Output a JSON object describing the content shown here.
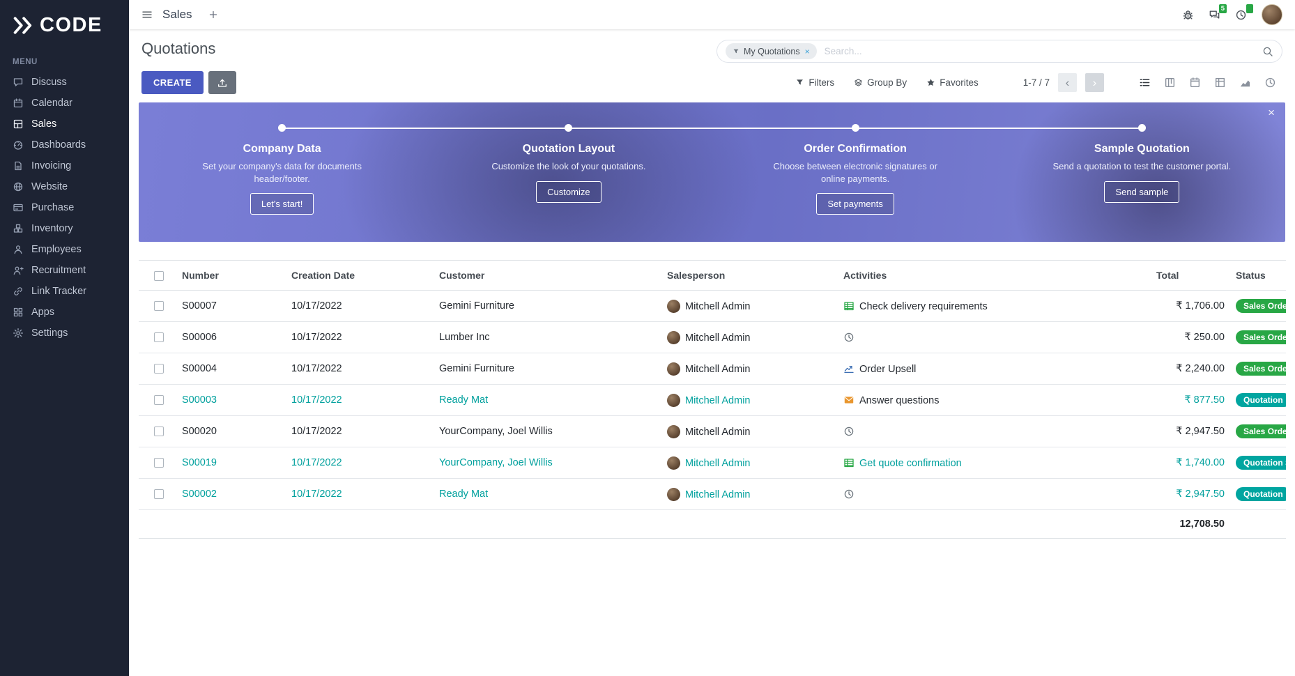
{
  "brand": {
    "name": "CODE",
    "logo_icon": "brand-logo-icon"
  },
  "topbar": {
    "title": "Sales",
    "tab_add": "+",
    "message_badge": "5",
    "icons": [
      "bug-icon",
      "chat-icon",
      "clock-icon"
    ]
  },
  "sidebar": {
    "menu_label": "MENU",
    "items": [
      {
        "label": "Discuss",
        "icon": "discuss-icon",
        "active": false
      },
      {
        "label": "Calendar",
        "icon": "calendar-icon",
        "active": false
      },
      {
        "label": "Sales",
        "icon": "sales-icon",
        "active": true
      },
      {
        "label": "Dashboards",
        "icon": "dashboards-icon",
        "active": false
      },
      {
        "label": "Invoicing",
        "icon": "invoicing-icon",
        "active": false
      },
      {
        "label": "Website",
        "icon": "website-icon",
        "active": false
      },
      {
        "label": "Purchase",
        "icon": "purchase-icon",
        "active": false
      },
      {
        "label": "Inventory",
        "icon": "inventory-icon",
        "active": false
      },
      {
        "label": "Employees",
        "icon": "employees-icon",
        "active": false
      },
      {
        "label": "Recruitment",
        "icon": "recruitment-icon",
        "active": false
      },
      {
        "label": "Link Tracker",
        "icon": "link-tracker-icon",
        "active": false
      },
      {
        "label": "Apps",
        "icon": "apps-icon",
        "active": false
      },
      {
        "label": "Settings",
        "icon": "settings-icon",
        "active": false
      }
    ]
  },
  "control_panel": {
    "title": "Quotations",
    "create_label": "CREATE",
    "search": {
      "chip": "My Quotations",
      "chip_remove": "×",
      "placeholder": "Search..."
    },
    "filters_label": "Filters",
    "group_by_label": "Group By",
    "favorites_label": "Favorites",
    "pager": {
      "text": "1-7 / 7",
      "prev": "‹",
      "next": "›"
    },
    "views": [
      "list-view-icon",
      "kanban-view-icon",
      "calendar-view-icon",
      "pivot-view-icon",
      "graph-view-icon",
      "activity-view-icon"
    ]
  },
  "banner": {
    "close": "×",
    "steps": [
      {
        "title": "Company Data",
        "desc": "Set your company's data for documents header/footer.",
        "button": "Let's start!"
      },
      {
        "title": "Quotation Layout",
        "desc": "Customize the look of your quotations.",
        "button": "Customize"
      },
      {
        "title": "Order Confirmation",
        "desc": "Choose between electronic signatures or online payments.",
        "button": "Set payments"
      },
      {
        "title": "Sample Quotation",
        "desc": "Send a quotation to test the customer portal.",
        "button": "Send sample"
      }
    ]
  },
  "table": {
    "columns": [
      "Number",
      "Creation Date",
      "Customer",
      "Salesperson",
      "Activities",
      "Total",
      "Status"
    ],
    "rows": [
      {
        "number": "S00007",
        "date": "10/17/2022",
        "customer": "Gemini Furniture",
        "salesperson": "Mitchell Admin",
        "activity": {
          "icon": "spreadsheet-icon",
          "label": "Check delivery requirements",
          "color": "green",
          "teal": false
        },
        "total": "₹ 1,706.00",
        "status": "Sales Order",
        "status_color": "green",
        "highlight": false
      },
      {
        "number": "S00006",
        "date": "10/17/2022",
        "customer": "Lumber Inc",
        "salesperson": "Mitchell Admin",
        "activity": {
          "icon": "clock-icon",
          "label": "",
          "color": "gray",
          "teal": false
        },
        "total": "₹ 250.00",
        "status": "Sales Order",
        "status_color": "green",
        "highlight": false
      },
      {
        "number": "S00004",
        "date": "10/17/2022",
        "customer": "Gemini Furniture",
        "salesperson": "Mitchell Admin",
        "activity": {
          "icon": "line-chart-icon",
          "label": "Order Upsell",
          "color": "blue",
          "teal": false
        },
        "total": "₹ 2,240.00",
        "status": "Sales Order",
        "status_color": "green",
        "highlight": false
      },
      {
        "number": "S00003",
        "date": "10/17/2022",
        "customer": "Ready Mat",
        "salesperson": "Mitchell Admin",
        "activity": {
          "icon": "envelope-icon",
          "label": "Answer questions",
          "color": "orange",
          "teal": false
        },
        "total": "₹ 877.50",
        "status": "Quotation",
        "status_color": "teal",
        "highlight": true
      },
      {
        "number": "S00020",
        "date": "10/17/2022",
        "customer": "YourCompany, Joel Willis",
        "salesperson": "Mitchell Admin",
        "activity": {
          "icon": "clock-icon",
          "label": "",
          "color": "gray",
          "teal": false
        },
        "total": "₹ 2,947.50",
        "status": "Sales Order",
        "status_color": "green",
        "highlight": false
      },
      {
        "number": "S00019",
        "date": "10/17/2022",
        "customer": "YourCompany, Joel Willis",
        "salesperson": "Mitchell Admin",
        "activity": {
          "icon": "spreadsheet-icon",
          "label": "Get quote confirmation",
          "color": "green",
          "teal": true
        },
        "total": "₹ 1,740.00",
        "status": "Quotation Sent",
        "status_color": "teal",
        "highlight": true
      },
      {
        "number": "S00002",
        "date": "10/17/2022",
        "customer": "Ready Mat",
        "salesperson": "Mitchell Admin",
        "activity": {
          "icon": "clock-icon",
          "label": "",
          "color": "gray",
          "teal": false
        },
        "total": "₹ 2,947.50",
        "status": "Quotation",
        "status_color": "teal",
        "highlight": true
      }
    ],
    "footer_total": "12,708.50"
  },
  "colors": {
    "accent": "#4a5ac1",
    "sidebar_bg": "#1d2333",
    "banner_purple": "#7277cf",
    "teal_link": "#00a09d",
    "status_green": "#28a745",
    "status_teal": "#00a5a0",
    "badge_green": "#28a745"
  }
}
